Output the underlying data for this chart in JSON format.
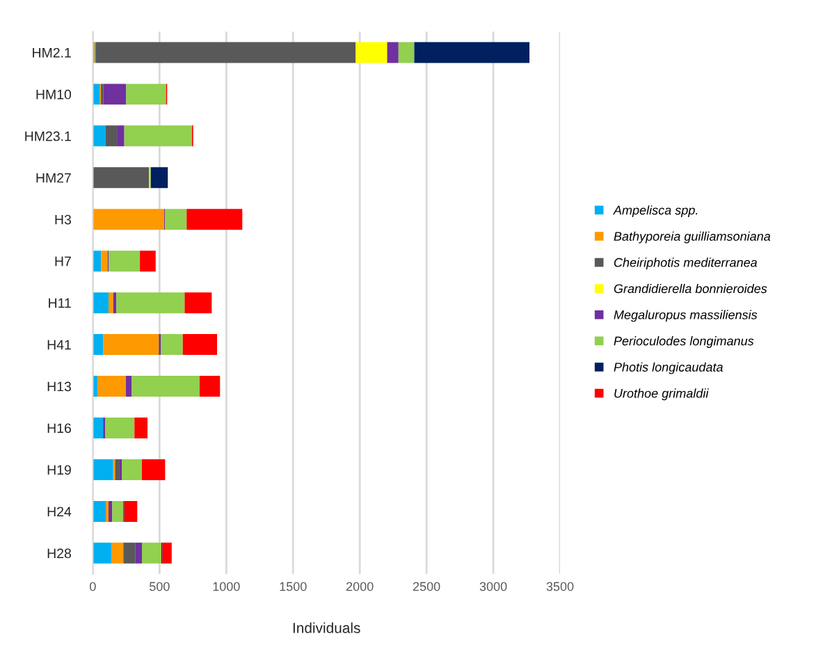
{
  "chart_data": {
    "type": "bar",
    "orientation": "horizontal",
    "stacked": true,
    "xlabel": "Individuals",
    "categories": [
      "HM2.1",
      "HM10",
      "HM23.1",
      "HM27",
      "H3",
      "H7",
      "H11",
      "H41",
      "H13",
      "H16",
      "H19",
      "H24",
      "H28"
    ],
    "series": [
      {
        "name": "Ampelisca spp.",
        "color": "#00b0f0",
        "values": [
          12,
          54,
          97,
          0,
          0,
          62,
          118,
          77,
          35,
          77,
          153,
          97,
          139
        ]
      },
      {
        "name": "Bathyporeia guilliamsoniana",
        "color": "#ff9900",
        "values": [
          8,
          7,
          0,
          0,
          535,
          49,
          35,
          418,
          213,
          0,
          14,
          21,
          90
        ]
      },
      {
        "name": "Cheiriphotis mediterranea",
        "color": "#595959",
        "values": [
          1949,
          19,
          84,
          422,
          0,
          0,
          0,
          0,
          0,
          0,
          34,
          0,
          91
        ]
      },
      {
        "name": "Grandidierella bonnieroides",
        "color": "#ffff00",
        "values": [
          236,
          0,
          0,
          5,
          0,
          0,
          0,
          0,
          0,
          0,
          0,
          0,
          0
        ]
      },
      {
        "name": "Megaluropus massiliensis",
        "color": "#7030a0",
        "values": [
          85,
          170,
          55,
          0,
          7,
          8,
          23,
          14,
          44,
          15,
          16,
          28,
          48
        ]
      },
      {
        "name": "Perioculodes longimanus",
        "color": "#92d050",
        "values": [
          118,
          299,
          507,
          8,
          161,
          234,
          512,
          165,
          508,
          220,
          151,
          83,
          146
        ]
      },
      {
        "name": "Photis longicaudata",
        "color": "#002060",
        "values": [
          863,
          0,
          0,
          127,
          0,
          0,
          0,
          0,
          0,
          0,
          0,
          7,
          7
        ]
      },
      {
        "name": "Urothoe grimaldii",
        "color": "#ff0000",
        "values": [
          0,
          8,
          9,
          0,
          417,
          118,
          203,
          257,
          153,
          98,
          174,
          97,
          70
        ]
      }
    ],
    "xlim": [
      0,
      3500
    ],
    "xticks": [
      0,
      500,
      1000,
      1500,
      2000,
      2500,
      3000,
      3500
    ],
    "grid": "x",
    "legend": "right"
  }
}
